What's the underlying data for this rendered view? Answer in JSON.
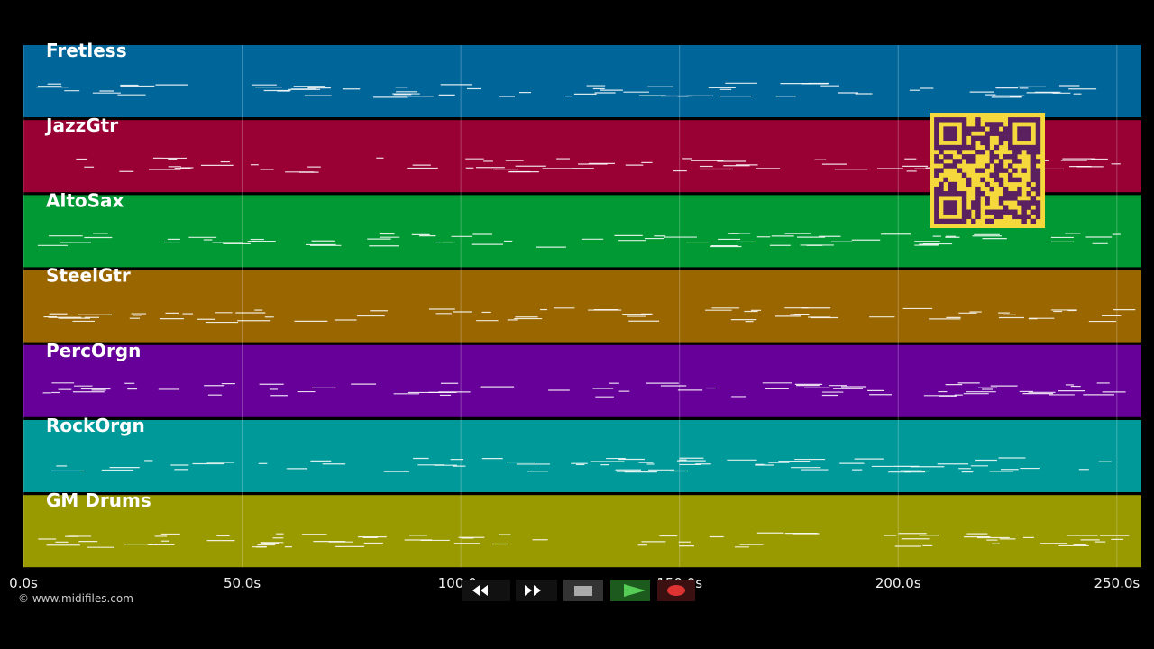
{
  "chart_data": {
    "type": "pianoroll",
    "tracks": [
      {
        "name": "Fretless",
        "color": "#006699"
      },
      {
        "name": "JazzGtr",
        "color": "#990033"
      },
      {
        "name": "AltoSax",
        "color": "#009933"
      },
      {
        "name": "SteelGtr",
        "color": "#996600"
      },
      {
        "name": "PercOrgn",
        "color": "#660099"
      },
      {
        "name": "RockOrgn",
        "color": "#009999"
      },
      {
        "name": "GM Drums",
        "color": "#999900"
      }
    ],
    "xlim": [
      0,
      255.6
    ],
    "xticks": [
      {
        "value": 0,
        "label": "0.0s"
      },
      {
        "value": 50,
        "label": "50.0s"
      },
      {
        "value": 100,
        "label": "100.0s"
      },
      {
        "value": 150,
        "label": "150.0s"
      },
      {
        "value": 200,
        "label": "200.0s"
      },
      {
        "value": 250,
        "label": "250.0s"
      }
    ],
    "grid": true
  },
  "footer": {
    "copyright": "© www.midifiles.com"
  }
}
